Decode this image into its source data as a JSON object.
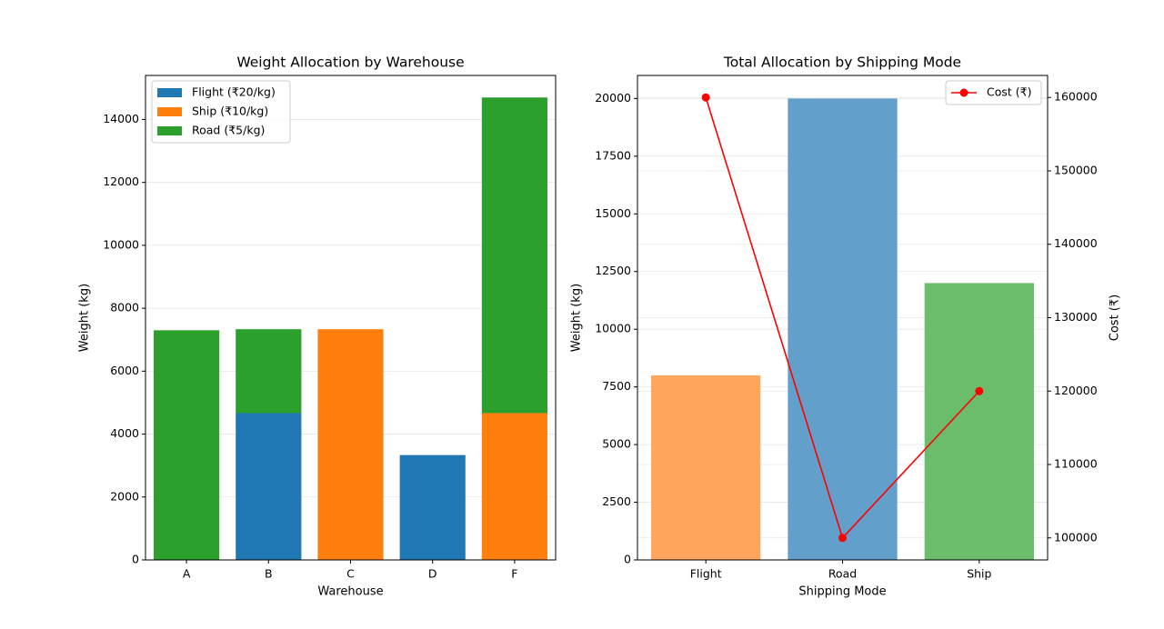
{
  "chart_data": [
    {
      "type": "bar",
      "stacked": true,
      "title": "Weight Allocation by Warehouse",
      "xlabel": "Warehouse",
      "ylabel": "Weight (kg)",
      "categories": [
        "A",
        "B",
        "C",
        "D",
        "F"
      ],
      "ylim": [
        0,
        15400
      ],
      "yticks": [
        0,
        2000,
        4000,
        6000,
        8000,
        10000,
        12000,
        14000
      ],
      "grid": "horizontal, light",
      "legend_position": "top-left",
      "series": [
        {
          "name": "Flight (₹20/kg)",
          "color": "#1f77b4",
          "values": [
            0,
            4667,
            0,
            3333,
            0
          ]
        },
        {
          "name": "Ship (₹10/kg)",
          "color": "#ff7f0e",
          "values": [
            0,
            0,
            7333,
            0,
            4667
          ]
        },
        {
          "name": "Road (₹5/kg)",
          "color": "#2ca02c",
          "values": [
            7300,
            2667,
            0,
            0,
            10033
          ]
        }
      ]
    },
    {
      "type": "bar",
      "title": "Total Allocation by Shipping Mode",
      "xlabel": "Shipping Mode",
      "ylabel": "Weight (kg)",
      "y2label": "Cost (₹)",
      "categories": [
        "Flight",
        "Road",
        "Ship"
      ],
      "ylim": [
        0,
        21000
      ],
      "yticks": [
        0,
        2500,
        5000,
        7500,
        10000,
        12500,
        15000,
        17500,
        20000
      ],
      "y2lim": [
        97000,
        163000
      ],
      "y2ticks": [
        100000,
        110000,
        120000,
        130000,
        140000,
        150000,
        160000
      ],
      "grid": "horizontal, light",
      "legend_position": "top-right",
      "bars": {
        "values": [
          8000,
          20000,
          12000
        ],
        "colors": [
          "#ffa65c",
          "#62a0cb",
          "#6bbc6b"
        ]
      },
      "line": {
        "name": "Cost (₹)",
        "color": "#ff0000",
        "values": [
          160000,
          100000,
          120000
        ]
      }
    }
  ]
}
